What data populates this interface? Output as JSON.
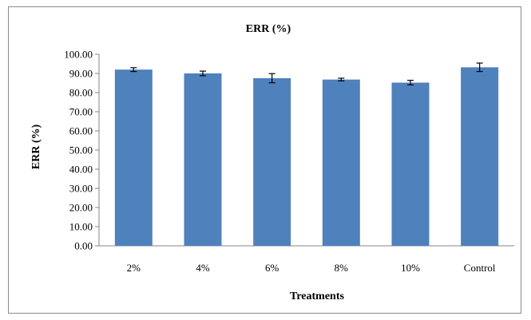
{
  "chart_data": {
    "type": "bar",
    "title": "ERR (%)",
    "xlabel": "Treatments",
    "ylabel": "ERR (%)",
    "categories": [
      "2%",
      "4%",
      "6%",
      "8%",
      "10%",
      "Control"
    ],
    "values": [
      92.0,
      90.0,
      87.5,
      86.8,
      85.2,
      93.2
    ],
    "error": [
      1.0,
      1.2,
      2.4,
      0.7,
      1.2,
      2.2
    ],
    "ylim": [
      0,
      100
    ],
    "yticks": [
      "0.00",
      "10.00",
      "20.00",
      "30.00",
      "40.00",
      "50.00",
      "60.00",
      "70.00",
      "80.00",
      "90.00",
      "100.00"
    ],
    "bar_color": "#4f81bd",
    "grid": false
  }
}
